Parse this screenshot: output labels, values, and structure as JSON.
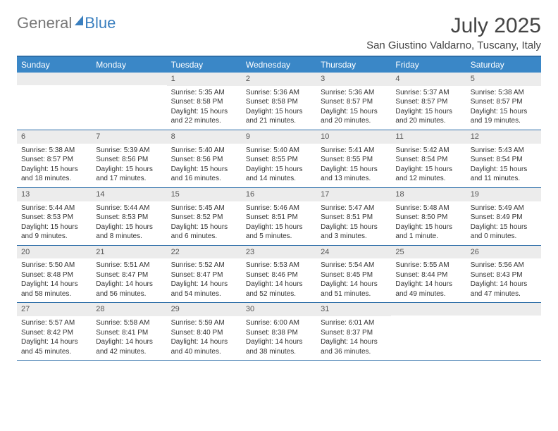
{
  "logo": {
    "text1": "General",
    "text2": "Blue"
  },
  "title": "July 2025",
  "location": "San Giustino Valdarno, Tuscany, Italy",
  "weekdays": [
    "Sunday",
    "Monday",
    "Tuesday",
    "Wednesday",
    "Thursday",
    "Friday",
    "Saturday"
  ],
  "colors": {
    "header_bg": "#3a87c7",
    "header_text": "#ffffff",
    "border": "#2d6ea8",
    "daynum_bg": "#ececec",
    "text": "#333333"
  },
  "fonts": {
    "title_size": 30,
    "location_size": 15,
    "weekday_size": 12,
    "daynum_size": 11,
    "body_size": 10
  },
  "weeks": [
    [
      {
        "n": "",
        "sr": "",
        "ss": "",
        "dl": ""
      },
      {
        "n": "",
        "sr": "",
        "ss": "",
        "dl": ""
      },
      {
        "n": "1",
        "sr": "Sunrise: 5:35 AM",
        "ss": "Sunset: 8:58 PM",
        "dl": "Daylight: 15 hours and 22 minutes."
      },
      {
        "n": "2",
        "sr": "Sunrise: 5:36 AM",
        "ss": "Sunset: 8:58 PM",
        "dl": "Daylight: 15 hours and 21 minutes."
      },
      {
        "n": "3",
        "sr": "Sunrise: 5:36 AM",
        "ss": "Sunset: 8:57 PM",
        "dl": "Daylight: 15 hours and 20 minutes."
      },
      {
        "n": "4",
        "sr": "Sunrise: 5:37 AM",
        "ss": "Sunset: 8:57 PM",
        "dl": "Daylight: 15 hours and 20 minutes."
      },
      {
        "n": "5",
        "sr": "Sunrise: 5:38 AM",
        "ss": "Sunset: 8:57 PM",
        "dl": "Daylight: 15 hours and 19 minutes."
      }
    ],
    [
      {
        "n": "6",
        "sr": "Sunrise: 5:38 AM",
        "ss": "Sunset: 8:57 PM",
        "dl": "Daylight: 15 hours and 18 minutes."
      },
      {
        "n": "7",
        "sr": "Sunrise: 5:39 AM",
        "ss": "Sunset: 8:56 PM",
        "dl": "Daylight: 15 hours and 17 minutes."
      },
      {
        "n": "8",
        "sr": "Sunrise: 5:40 AM",
        "ss": "Sunset: 8:56 PM",
        "dl": "Daylight: 15 hours and 16 minutes."
      },
      {
        "n": "9",
        "sr": "Sunrise: 5:40 AM",
        "ss": "Sunset: 8:55 PM",
        "dl": "Daylight: 15 hours and 14 minutes."
      },
      {
        "n": "10",
        "sr": "Sunrise: 5:41 AM",
        "ss": "Sunset: 8:55 PM",
        "dl": "Daylight: 15 hours and 13 minutes."
      },
      {
        "n": "11",
        "sr": "Sunrise: 5:42 AM",
        "ss": "Sunset: 8:54 PM",
        "dl": "Daylight: 15 hours and 12 minutes."
      },
      {
        "n": "12",
        "sr": "Sunrise: 5:43 AM",
        "ss": "Sunset: 8:54 PM",
        "dl": "Daylight: 15 hours and 11 minutes."
      }
    ],
    [
      {
        "n": "13",
        "sr": "Sunrise: 5:44 AM",
        "ss": "Sunset: 8:53 PM",
        "dl": "Daylight: 15 hours and 9 minutes."
      },
      {
        "n": "14",
        "sr": "Sunrise: 5:44 AM",
        "ss": "Sunset: 8:53 PM",
        "dl": "Daylight: 15 hours and 8 minutes."
      },
      {
        "n": "15",
        "sr": "Sunrise: 5:45 AM",
        "ss": "Sunset: 8:52 PM",
        "dl": "Daylight: 15 hours and 6 minutes."
      },
      {
        "n": "16",
        "sr": "Sunrise: 5:46 AM",
        "ss": "Sunset: 8:51 PM",
        "dl": "Daylight: 15 hours and 5 minutes."
      },
      {
        "n": "17",
        "sr": "Sunrise: 5:47 AM",
        "ss": "Sunset: 8:51 PM",
        "dl": "Daylight: 15 hours and 3 minutes."
      },
      {
        "n": "18",
        "sr": "Sunrise: 5:48 AM",
        "ss": "Sunset: 8:50 PM",
        "dl": "Daylight: 15 hours and 1 minute."
      },
      {
        "n": "19",
        "sr": "Sunrise: 5:49 AM",
        "ss": "Sunset: 8:49 PM",
        "dl": "Daylight: 15 hours and 0 minutes."
      }
    ],
    [
      {
        "n": "20",
        "sr": "Sunrise: 5:50 AM",
        "ss": "Sunset: 8:48 PM",
        "dl": "Daylight: 14 hours and 58 minutes."
      },
      {
        "n": "21",
        "sr": "Sunrise: 5:51 AM",
        "ss": "Sunset: 8:47 PM",
        "dl": "Daylight: 14 hours and 56 minutes."
      },
      {
        "n": "22",
        "sr": "Sunrise: 5:52 AM",
        "ss": "Sunset: 8:47 PM",
        "dl": "Daylight: 14 hours and 54 minutes."
      },
      {
        "n": "23",
        "sr": "Sunrise: 5:53 AM",
        "ss": "Sunset: 8:46 PM",
        "dl": "Daylight: 14 hours and 52 minutes."
      },
      {
        "n": "24",
        "sr": "Sunrise: 5:54 AM",
        "ss": "Sunset: 8:45 PM",
        "dl": "Daylight: 14 hours and 51 minutes."
      },
      {
        "n": "25",
        "sr": "Sunrise: 5:55 AM",
        "ss": "Sunset: 8:44 PM",
        "dl": "Daylight: 14 hours and 49 minutes."
      },
      {
        "n": "26",
        "sr": "Sunrise: 5:56 AM",
        "ss": "Sunset: 8:43 PM",
        "dl": "Daylight: 14 hours and 47 minutes."
      }
    ],
    [
      {
        "n": "27",
        "sr": "Sunrise: 5:57 AM",
        "ss": "Sunset: 8:42 PM",
        "dl": "Daylight: 14 hours and 45 minutes."
      },
      {
        "n": "28",
        "sr": "Sunrise: 5:58 AM",
        "ss": "Sunset: 8:41 PM",
        "dl": "Daylight: 14 hours and 42 minutes."
      },
      {
        "n": "29",
        "sr": "Sunrise: 5:59 AM",
        "ss": "Sunset: 8:40 PM",
        "dl": "Daylight: 14 hours and 40 minutes."
      },
      {
        "n": "30",
        "sr": "Sunrise: 6:00 AM",
        "ss": "Sunset: 8:38 PM",
        "dl": "Daylight: 14 hours and 38 minutes."
      },
      {
        "n": "31",
        "sr": "Sunrise: 6:01 AM",
        "ss": "Sunset: 8:37 PM",
        "dl": "Daylight: 14 hours and 36 minutes."
      },
      {
        "n": "",
        "sr": "",
        "ss": "",
        "dl": ""
      },
      {
        "n": "",
        "sr": "",
        "ss": "",
        "dl": ""
      }
    ]
  ]
}
